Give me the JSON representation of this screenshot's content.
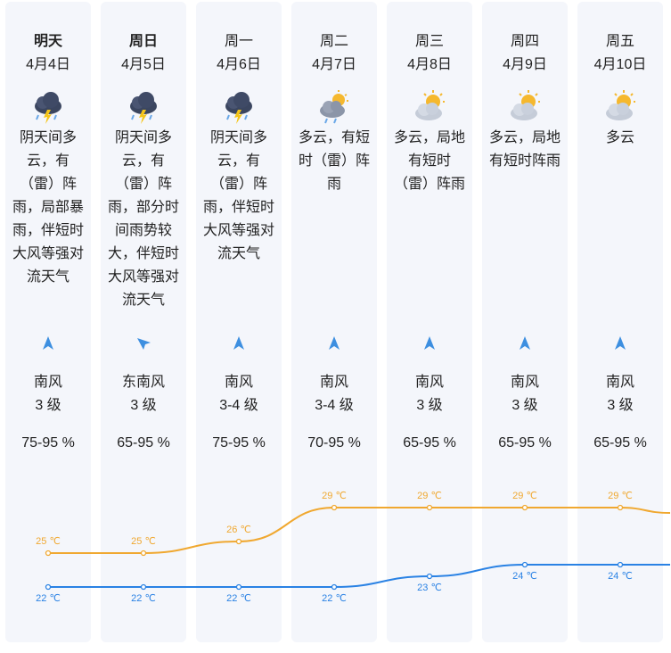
{
  "forecast": {
    "days": [
      {
        "name": "明天",
        "date": "4月4日",
        "icon": "thunderstorm-icon",
        "weather": "阴天间多云，有（雷）阵雨，局部暴雨，伴短时大风等强对流天气",
        "wind_dir": "南风",
        "wind_level": "3 级",
        "wind_icon": "wind-arrow-north-icon",
        "humidity": "75-95 %",
        "high": "25 ℃",
        "low": "22 ℃"
      },
      {
        "name": "周日",
        "date": "4月5日",
        "icon": "thunderstorm-icon",
        "weather": "阴天间多云，有（雷）阵雨，部分时间雨势较大，伴短时大风等强对流天气",
        "wind_dir": "东南风",
        "wind_level": "3 级",
        "wind_icon": "wind-arrow-northwest-icon",
        "humidity": "65-95 %",
        "high": "25 ℃",
        "low": "22 ℃"
      },
      {
        "name": "周一",
        "date": "4月6日",
        "icon": "thunderstorm-icon",
        "weather": "阴天间多云，有（雷）阵雨，伴短时大风等强对流天气",
        "wind_dir": "南风",
        "wind_level": "3-4 级",
        "wind_icon": "wind-arrow-north-icon",
        "humidity": "75-95 %",
        "high": "26 ℃",
        "low": "22 ℃"
      },
      {
        "name": "周二",
        "date": "4月7日",
        "icon": "partly-cloudy-rain-icon",
        "weather": "多云，有短时（雷）阵雨",
        "wind_dir": "南风",
        "wind_level": "3-4 级",
        "wind_icon": "wind-arrow-north-icon",
        "humidity": "70-95 %",
        "high": "29 ℃",
        "low": "22 ℃"
      },
      {
        "name": "周三",
        "date": "4月8日",
        "icon": "partly-cloudy-icon",
        "weather": "多云，局地有短时（雷）阵雨",
        "wind_dir": "南风",
        "wind_level": "3 级",
        "wind_icon": "wind-arrow-north-icon",
        "humidity": "65-95 %",
        "high": "29 ℃",
        "low": "23 ℃"
      },
      {
        "name": "周四",
        "date": "4月9日",
        "icon": "partly-cloudy-icon",
        "weather": "多云，局地有短时阵雨",
        "wind_dir": "南风",
        "wind_level": "3 级",
        "wind_icon": "wind-arrow-north-icon",
        "humidity": "65-95 %",
        "high": "29 ℃",
        "low": "24 ℃"
      },
      {
        "name": "周五",
        "date": "4月10日",
        "icon": "partly-cloudy-icon",
        "weather": "多云",
        "wind_dir": "南风",
        "wind_level": "3 级",
        "wind_icon": "wind-arrow-north-icon",
        "humidity": "65-95 %",
        "high": "29 ℃",
        "low": "24 ℃"
      }
    ]
  },
  "chart_data": {
    "type": "line",
    "categories": [
      "4月4日",
      "4月5日",
      "4月6日",
      "4月7日",
      "4月8日",
      "4月9日",
      "4月10日"
    ],
    "series": [
      {
        "values": [
          25,
          25,
          26,
          29,
          29,
          29,
          29
        ],
        "color": "#f0a830"
      },
      {
        "values": [
          22,
          22,
          22,
          22,
          23,
          24,
          24
        ],
        "color": "#2a82e4"
      }
    ],
    "unit": "℃",
    "ylim": [
      20,
      31
    ]
  },
  "colors": {
    "high": "#f0a830",
    "low": "#2a82e4",
    "arrow": "#3d8fe0",
    "card": "#f4f6fb"
  }
}
